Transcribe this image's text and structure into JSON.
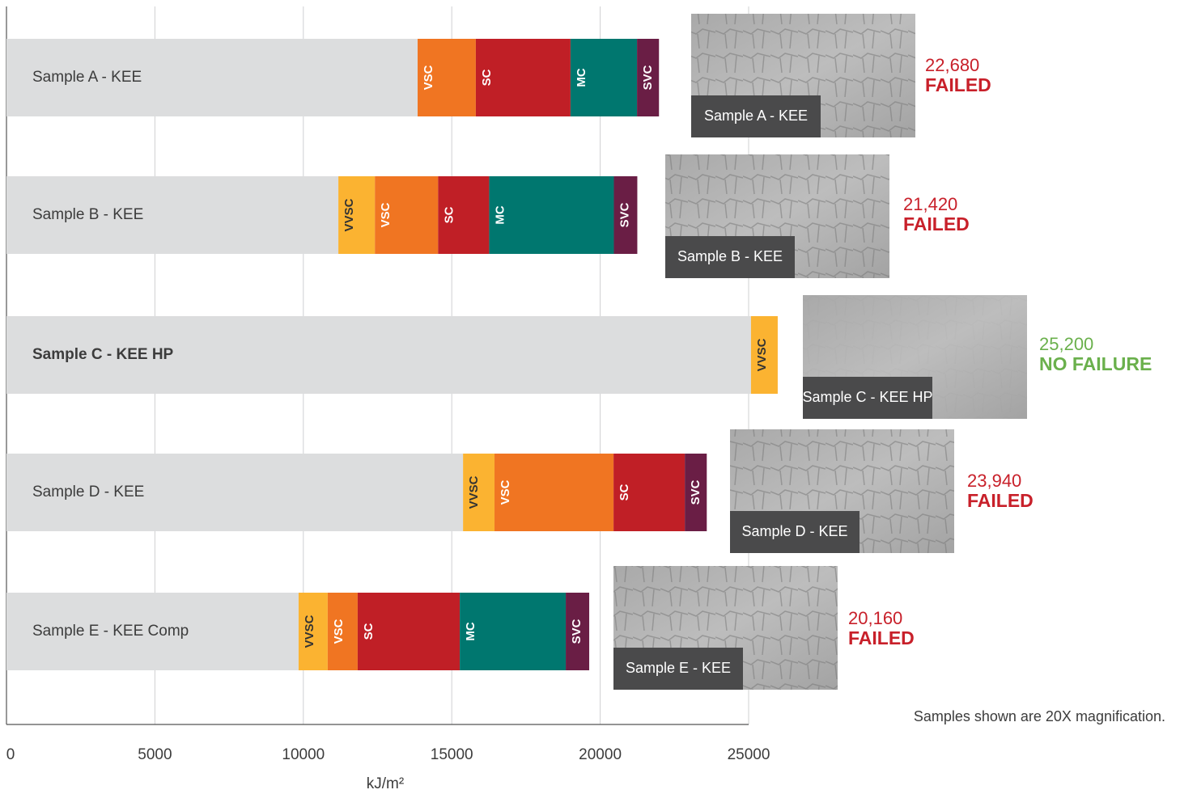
{
  "chart_data": {
    "type": "bar",
    "orientation": "horizontal",
    "stacked": true,
    "xlabel": "kJ/m²",
    "xlim": [
      0,
      25000
    ],
    "xticks": [
      0,
      5000,
      10000,
      15000,
      20000,
      25000
    ],
    "grid": true,
    "note": "Samples shown are 20X magnification.",
    "bars": [
      {
        "name": "Sample A - KEE",
        "bold": false,
        "image_caption": "Sample A - KEE",
        "score": "22,680",
        "result": "FAILED",
        "result_color": "#c8202a",
        "segments": [
          {
            "value": 13850,
            "color": "#dcddde"
          },
          {
            "label": "VSC",
            "value": 1960,
            "color": "#f07522"
          },
          {
            "label": "SC",
            "value": 3190,
            "color": "#c01f26"
          },
          {
            "label": "MC",
            "value": 2240,
            "color": "#00776f"
          },
          {
            "label": "SVC",
            "value": 740,
            "color": "#6a1e45"
          }
        ]
      },
      {
        "name": "Sample B - KEE",
        "bold": false,
        "image_caption": "Sample B - KEE",
        "score": "21,420",
        "result": "FAILED",
        "result_color": "#c8202a",
        "segments": [
          {
            "value": 11180,
            "color": "#dcddde"
          },
          {
            "label": "VVSC",
            "value": 1230,
            "color": "#fbb331"
          },
          {
            "label": "VSC",
            "value": 2130,
            "color": "#f07522"
          },
          {
            "label": "SC",
            "value": 1720,
            "color": "#c01f26"
          },
          {
            "label": "MC",
            "value": 4200,
            "color": "#00776f"
          },
          {
            "label": "SVC",
            "value": 790,
            "color": "#6a1e45"
          }
        ]
      },
      {
        "name": "Sample C - KEE HP",
        "bold": true,
        "image_caption": "Sample C - KEE HP",
        "score": "25,200",
        "result": "NO FAILURE",
        "result_color": "#6ab04c",
        "segments": [
          {
            "value": 25080,
            "color": "#dcddde"
          },
          {
            "label": "VVSC",
            "value": 900,
            "color": "#fbb331"
          }
        ]
      },
      {
        "name": "Sample D - KEE",
        "bold": false,
        "image_caption": "Sample D - KEE",
        "score": "23,940",
        "result": "FAILED",
        "result_color": "#c8202a",
        "segments": [
          {
            "value": 15380,
            "color": "#dcddde"
          },
          {
            "label": "VVSC",
            "value": 1060,
            "color": "#fbb331"
          },
          {
            "label": "VSC",
            "value": 4010,
            "color": "#f07522"
          },
          {
            "label": "SC",
            "value": 2400,
            "color": "#c01f26"
          },
          {
            "label": "SVC",
            "value": 740,
            "color": "#6a1e45"
          }
        ]
      },
      {
        "name": "Sample E - KEE Comp",
        "bold": false,
        "image_caption": "Sample E - KEE",
        "score": "20,160",
        "result": "FAILED",
        "result_color": "#c8202a",
        "segments": [
          {
            "value": 9840,
            "color": "#dcddde"
          },
          {
            "label": "VVSC",
            "value": 980,
            "color": "#fbb331"
          },
          {
            "label": "VSC",
            "value": 1010,
            "color": "#f07522"
          },
          {
            "label": "SC",
            "value": 3440,
            "color": "#c01f26"
          },
          {
            "label": "MC",
            "value": 3570,
            "color": "#00776f"
          },
          {
            "label": "SVC",
            "value": 790,
            "color": "#6a1e45"
          }
        ]
      }
    ]
  }
}
